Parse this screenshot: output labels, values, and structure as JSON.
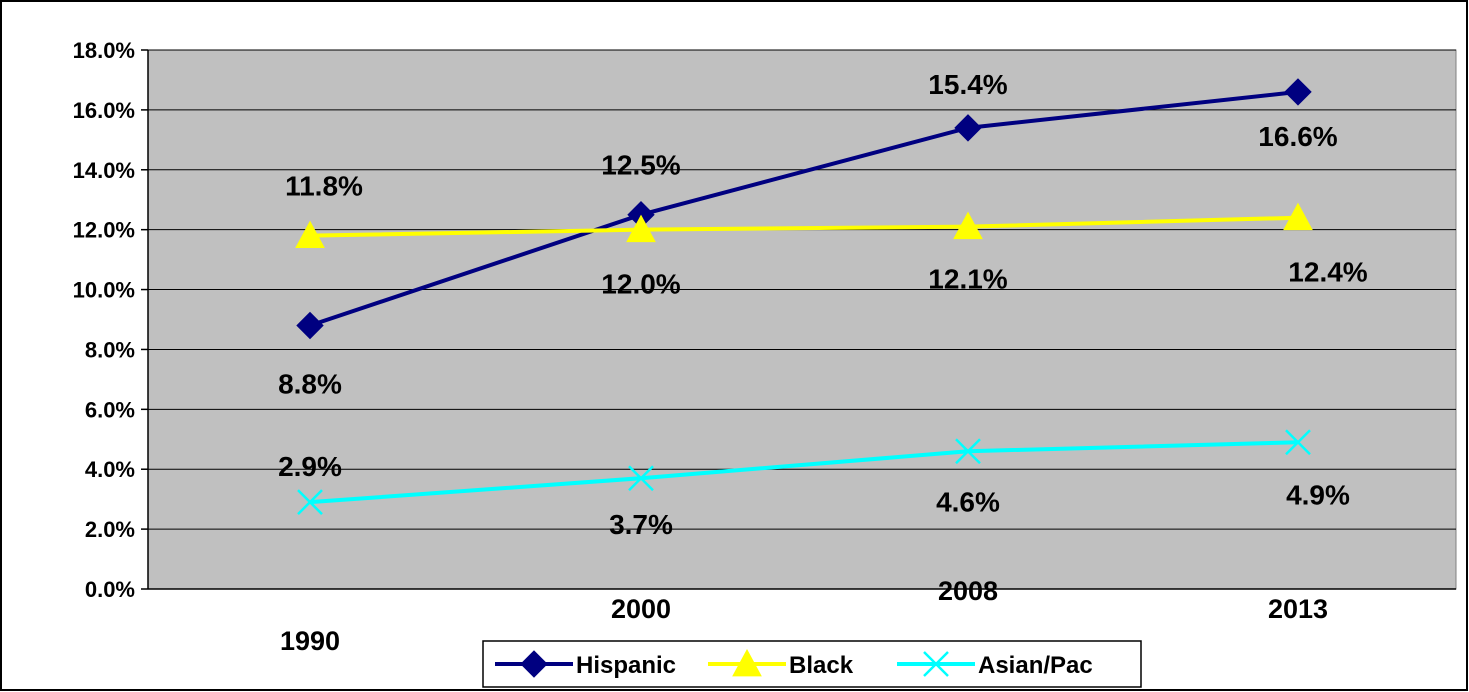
{
  "chart_data": {
    "type": "line",
    "title": "",
    "xlabel": "",
    "ylabel": "",
    "categories": [
      "1990",
      "2000",
      "2008",
      "2013"
    ],
    "ylim": [
      0,
      18
    ],
    "y_ticks": [
      "0.0%",
      "2.0%",
      "4.0%",
      "6.0%",
      "8.0%",
      "10.0%",
      "12.0%",
      "14.0%",
      "16.0%",
      "18.0%"
    ],
    "grid": true,
    "legend_position": "bottom",
    "series": [
      {
        "name": "Hispanic",
        "values": [
          8.8,
          12.5,
          15.4,
          16.6
        ],
        "labels": [
          "8.8%",
          "12.5%",
          "15.4%",
          "16.6%"
        ],
        "color": "#000080",
        "marker": "diamond"
      },
      {
        "name": "Black",
        "values": [
          11.8,
          12.0,
          12.1,
          12.4
        ],
        "labels": [
          "11.8%",
          "12.0%",
          "12.1%",
          "12.4%"
        ],
        "color": "#ffff00",
        "marker": "triangle"
      },
      {
        "name": "Asian/Pac",
        "values": [
          2.9,
          3.7,
          4.6,
          4.9
        ],
        "labels": [
          "2.9%",
          "3.7%",
          "4.6%",
          "4.9%"
        ],
        "color": "#00ffff",
        "marker": "x"
      }
    ]
  }
}
